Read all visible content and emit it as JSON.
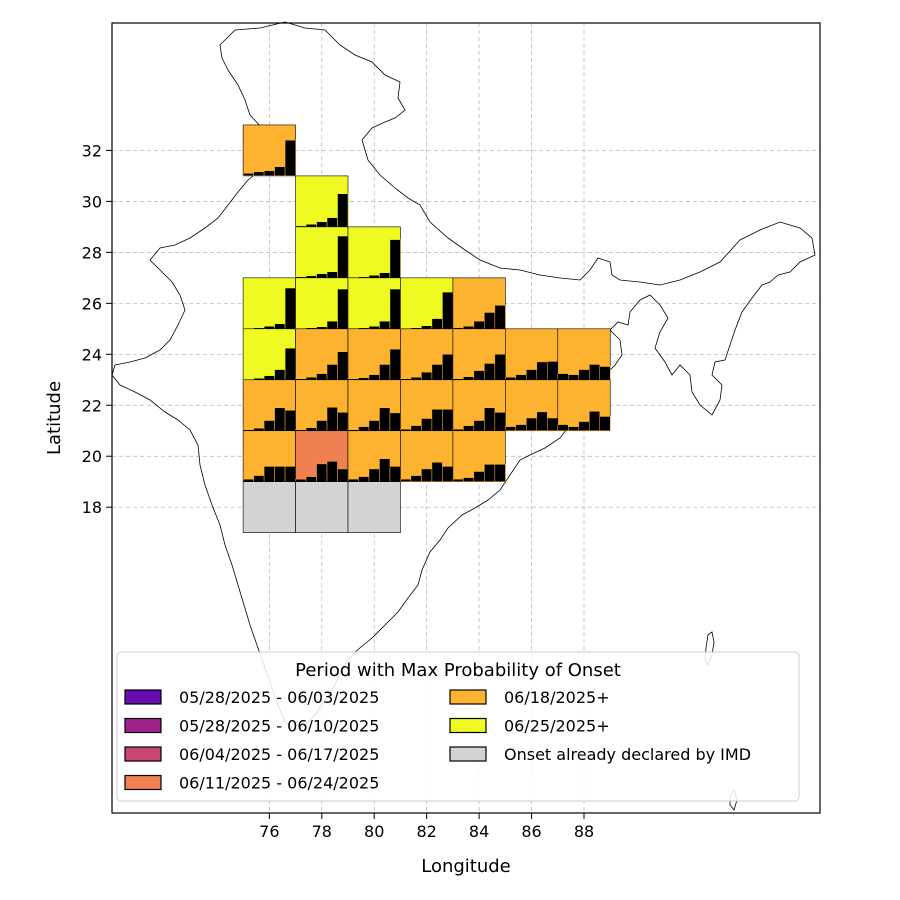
{
  "axes": {
    "xlabel": "Longitude",
    "ylabel": "Latitude",
    "x_ticks": [
      "76",
      "78",
      "80",
      "82",
      "84",
      "86",
      "88"
    ],
    "y_ticks": [
      "18",
      "20",
      "22",
      "24",
      "26",
      "28",
      "30",
      "32"
    ],
    "grid": true
  },
  "legend": {
    "title": "Period with Max Probability of Onset",
    "placement": "lower-center",
    "entries": [
      {
        "label": "05/28/2025 - 06/03/2025",
        "color": "#6a0bb0"
      },
      {
        "label": "05/28/2025 - 06/10/2025",
        "color": "#a0228f"
      },
      {
        "label": "06/04/2025 - 06/17/2025",
        "color": "#c9486f"
      },
      {
        "label": "06/11/2025 - 06/24/2025",
        "color": "#ef8052"
      },
      {
        "label": "06/18/2025+",
        "color": "#fdb32f"
      },
      {
        "label": "06/25/2025+",
        "color": "#effa22"
      },
      {
        "label": "Onset already declared by IMD",
        "color": "#d3d3d3"
      }
    ]
  },
  "chart_data": {
    "type": "heatmap",
    "x_range": [
      70,
      97
    ],
    "y_range": [
      6,
      37
    ],
    "cell_size_deg": 2,
    "cells": [
      {
        "lon": 76,
        "lat": 32,
        "category": "06/18/2025+",
        "bars": [
          0.05,
          0.08,
          0.1,
          0.18,
          0.7
        ]
      },
      {
        "lon": 78,
        "lat": 30,
        "category": "06/25/2025+",
        "bars": [
          0.02,
          0.05,
          0.1,
          0.18,
          0.65
        ]
      },
      {
        "lon": 78,
        "lat": 28,
        "category": "06/25/2025+",
        "bars": [
          0.02,
          0.04,
          0.08,
          0.12,
          0.82
        ]
      },
      {
        "lon": 80,
        "lat": 28,
        "category": "06/25/2025+",
        "bars": [
          0.01,
          0.02,
          0.05,
          0.1,
          0.75
        ]
      },
      {
        "lon": 76,
        "lat": 26,
        "category": "06/25/2025+",
        "bars": [
          0.01,
          0.02,
          0.05,
          0.1,
          0.8
        ]
      },
      {
        "lon": 78,
        "lat": 26,
        "category": "06/25/2025+",
        "bars": [
          0.01,
          0.02,
          0.04,
          0.15,
          0.78
        ]
      },
      {
        "lon": 80,
        "lat": 26,
        "category": "06/25/2025+",
        "bars": [
          0.01,
          0.02,
          0.05,
          0.15,
          0.78
        ]
      },
      {
        "lon": 82,
        "lat": 26,
        "category": "06/25/2025+",
        "bars": [
          0.01,
          0.02,
          0.06,
          0.2,
          0.72
        ]
      },
      {
        "lon": 84,
        "lat": 26,
        "category": "06/18/2025+",
        "bars": [
          0.02,
          0.05,
          0.15,
          0.32,
          0.46
        ]
      },
      {
        "lon": 76,
        "lat": 24,
        "category": "06/25/2025+",
        "bars": [
          0.01,
          0.03,
          0.08,
          0.2,
          0.62
        ]
      },
      {
        "lon": 78,
        "lat": 24,
        "category": "06/18/2025+",
        "bars": [
          0.02,
          0.05,
          0.12,
          0.3,
          0.55
        ]
      },
      {
        "lon": 80,
        "lat": 24,
        "category": "06/18/2025+",
        "bars": [
          0.02,
          0.04,
          0.1,
          0.3,
          0.6
        ]
      },
      {
        "lon": 82,
        "lat": 24,
        "category": "06/18/2025+",
        "bars": [
          0.02,
          0.05,
          0.15,
          0.3,
          0.5
        ]
      },
      {
        "lon": 84,
        "lat": 24,
        "category": "06/18/2025+",
        "bars": [
          0.02,
          0.06,
          0.18,
          0.32,
          0.5
        ]
      },
      {
        "lon": 86,
        "lat": 24,
        "category": "06/18/2025+",
        "bars": [
          0.05,
          0.1,
          0.2,
          0.35,
          0.36
        ]
      },
      {
        "lon": 88,
        "lat": 24,
        "category": "06/18/2025+",
        "bars": [
          0.12,
          0.1,
          0.2,
          0.3,
          0.26
        ]
      },
      {
        "lon": 76,
        "lat": 22,
        "category": "06/18/2025+",
        "bars": [
          0.02,
          0.05,
          0.2,
          0.45,
          0.4
        ]
      },
      {
        "lon": 78,
        "lat": 22,
        "category": "06/18/2025+",
        "bars": [
          0.02,
          0.06,
          0.2,
          0.46,
          0.36
        ]
      },
      {
        "lon": 80,
        "lat": 22,
        "category": "06/18/2025+",
        "bars": [
          0.02,
          0.08,
          0.2,
          0.45,
          0.35
        ]
      },
      {
        "lon": 82,
        "lat": 22,
        "category": "06/18/2025+",
        "bars": [
          0.03,
          0.1,
          0.24,
          0.42,
          0.42
        ]
      },
      {
        "lon": 84,
        "lat": 22,
        "category": "06/18/2025+",
        "bars": [
          0.03,
          0.1,
          0.2,
          0.45,
          0.36
        ]
      },
      {
        "lon": 86,
        "lat": 22,
        "category": "06/18/2025+",
        "bars": [
          0.08,
          0.12,
          0.25,
          0.37,
          0.25
        ]
      },
      {
        "lon": 88,
        "lat": 22,
        "category": "06/18/2025+",
        "bars": [
          0.12,
          0.08,
          0.18,
          0.38,
          0.28
        ]
      },
      {
        "lon": 76,
        "lat": 20,
        "category": "06/18/2025+",
        "bars": [
          0.05,
          0.12,
          0.3,
          0.3,
          0.3
        ]
      },
      {
        "lon": 78,
        "lat": 20,
        "category": "06/11/2025 - 06/24/2025",
        "bars": [
          0.05,
          0.1,
          0.35,
          0.4,
          0.25
        ]
      },
      {
        "lon": 80,
        "lat": 20,
        "category": "06/18/2025+",
        "bars": [
          0.05,
          0.1,
          0.25,
          0.45,
          0.3
        ]
      },
      {
        "lon": 82,
        "lat": 20,
        "category": "06/18/2025+",
        "bars": [
          0.05,
          0.12,
          0.25,
          0.38,
          0.3
        ]
      },
      {
        "lon": 84,
        "lat": 20,
        "category": "06/18/2025+",
        "bars": [
          0.05,
          0.08,
          0.2,
          0.34,
          0.34
        ]
      },
      {
        "lon": 76,
        "lat": 18,
        "category": "Onset already declared by IMD",
        "bars": []
      },
      {
        "lon": 78,
        "lat": 18,
        "category": "Onset already declared by IMD",
        "bars": []
      },
      {
        "lon": 80,
        "lat": 18,
        "category": "Onset already declared by IMD",
        "bars": []
      }
    ]
  }
}
